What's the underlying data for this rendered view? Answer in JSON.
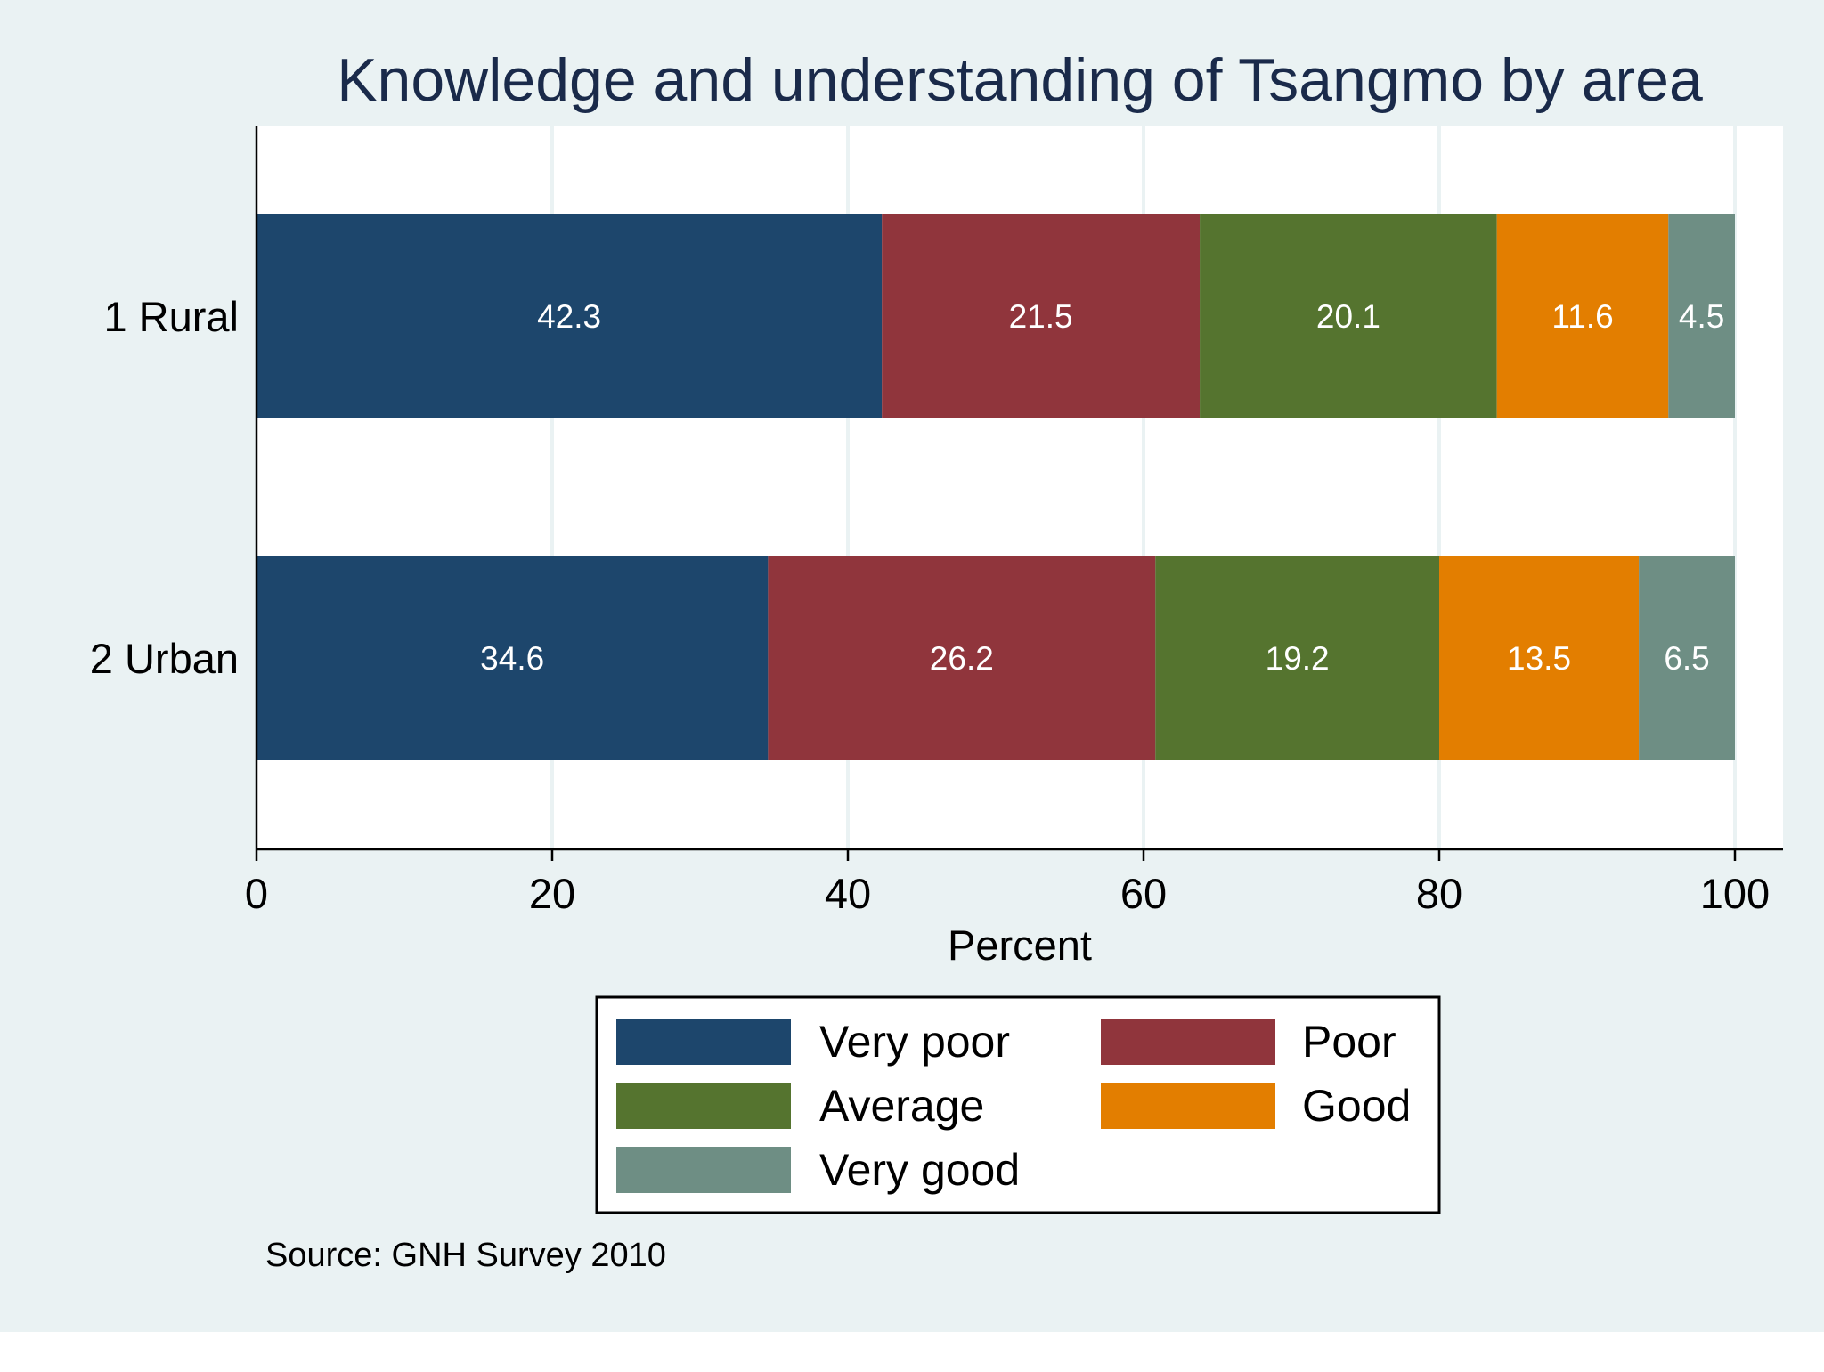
{
  "chart_data": {
    "type": "bar",
    "orientation": "horizontal",
    "stacked": true,
    "title": "Knowledge and understanding of Tsangmo by area",
    "xlabel": "Percent",
    "ylabel": "",
    "xlim": [
      0,
      100
    ],
    "xticks": [
      0,
      20,
      40,
      60,
      80,
      100
    ],
    "grid": true,
    "legend_position": "bottom-center",
    "source_note": "Source: GNH Survey 2010",
    "categories": [
      "1 Rural",
      "2 Urban"
    ],
    "series": [
      {
        "name": "Very poor",
        "color": "#1d466c",
        "values": [
          42.3,
          34.6
        ]
      },
      {
        "name": "Poor",
        "color": "#90353c",
        "values": [
          21.5,
          26.2
        ]
      },
      {
        "name": "Average",
        "color": "#55742f",
        "values": [
          20.1,
          19.2
        ]
      },
      {
        "name": "Good",
        "color": "#e37e00",
        "values": [
          11.6,
          13.5
        ]
      },
      {
        "name": "Very good",
        "color": "#6e8e84",
        "values": [
          4.5,
          6.5
        ]
      }
    ],
    "colors": {
      "outer_background": "#eaf2f3",
      "plot_background": "#ffffff",
      "title": "#1a2a4a",
      "gridline": "#eaf2f3",
      "bar_label": "#ffffff"
    }
  }
}
